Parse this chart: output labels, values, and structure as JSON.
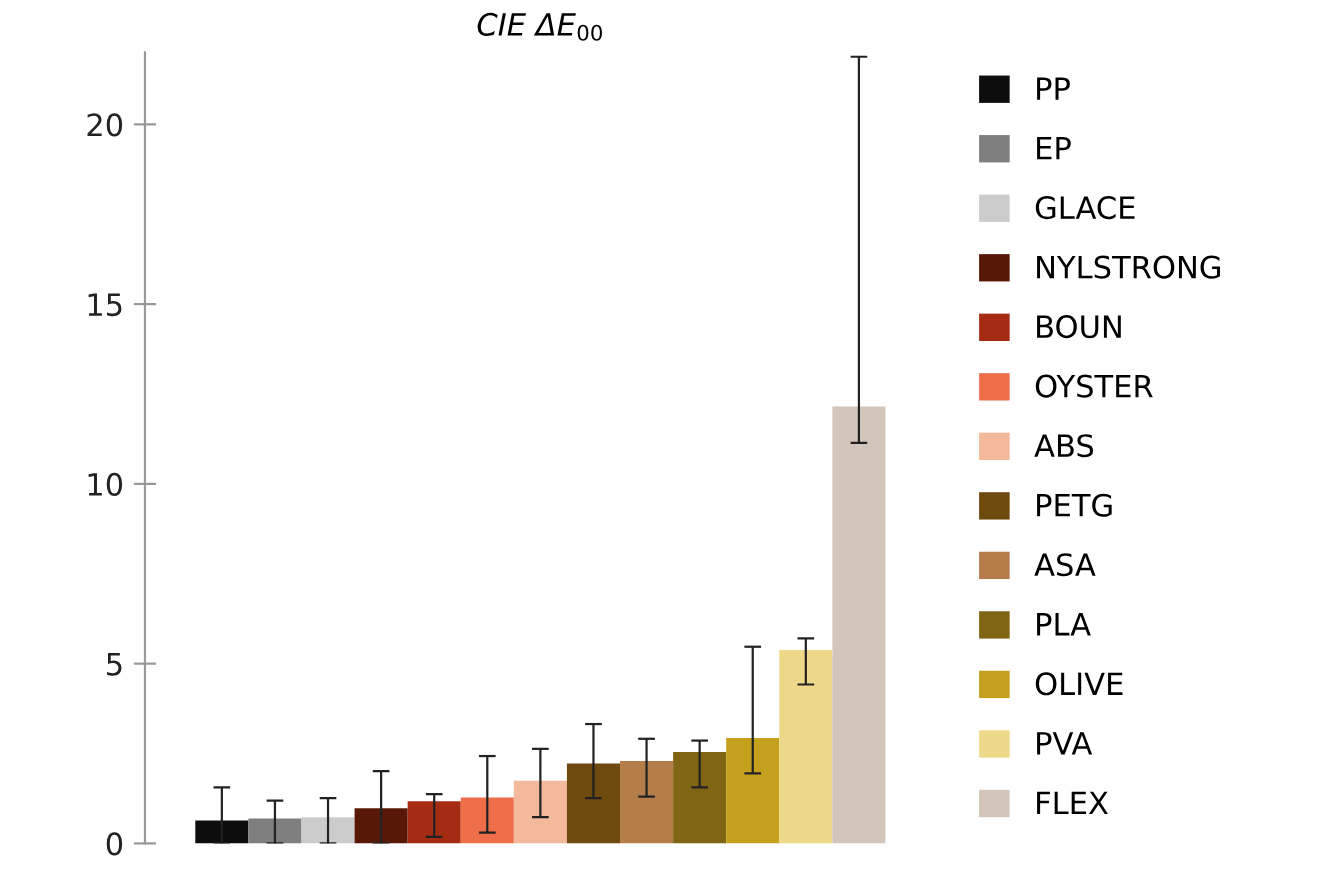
{
  "chart_data": {
    "type": "bar",
    "title": "CIE ΔE$_{00}$",
    "categories": [
      null
    ],
    "series": [
      {
        "name": "PP",
        "color": "#0d0d0d",
        "values": [
          0.64
        ],
        "errors": [
          [
            0,
            1.56
          ]
        ]
      },
      {
        "name": "EP",
        "color": "#7f7f7f",
        "values": [
          0.69
        ],
        "errors": [
          [
            0,
            1.19
          ]
        ]
      },
      {
        "name": "GLACE",
        "color": "#cccccc",
        "values": [
          0.73
        ],
        "errors": [
          [
            0,
            1.26
          ]
        ]
      },
      {
        "name": "NYLSTRONG",
        "color": "#581808",
        "values": [
          0.98
        ],
        "errors": [
          [
            0,
            2.01
          ]
        ]
      },
      {
        "name": "BOUN",
        "color": "#a52c12",
        "values": [
          1.17
        ],
        "errors": [
          [
            0.18,
            1.37
          ]
        ]
      },
      {
        "name": "OYSTER",
        "color": "#ee6e4a",
        "values": [
          1.28
        ],
        "errors": [
          [
            0.3,
            2.43
          ]
        ]
      },
      {
        "name": "ABS",
        "color": "#f4b89a",
        "values": [
          1.74
        ],
        "errors": [
          [
            0.73,
            2.63
          ]
        ]
      },
      {
        "name": "PETG",
        "color": "#6e4a0f",
        "values": [
          2.22
        ],
        "errors": [
          [
            1.26,
            3.32
          ]
        ]
      },
      {
        "name": "ASA",
        "color": "#b57d4a",
        "values": [
          2.29
        ],
        "errors": [
          [
            1.3,
            2.91
          ]
        ]
      },
      {
        "name": "PLA",
        "color": "#7f6514",
        "values": [
          2.54
        ],
        "errors": [
          [
            1.56,
            2.86
          ]
        ]
      },
      {
        "name": "OLIVE",
        "color": "#c4a01c",
        "values": [
          2.93
        ],
        "errors": [
          [
            1.95,
            5.47
          ]
        ]
      },
      {
        "name": "PVA",
        "color": "#eed98a",
        "values": [
          5.38
        ],
        "errors": [
          [
            4.42,
            5.7
          ]
        ]
      },
      {
        "name": "FLEX",
        "color": "#d3c5b9",
        "values": [
          12.15
        ],
        "errors": [
          [
            11.14,
            21.88
          ]
        ]
      }
    ],
    "ylim": [
      0,
      22
    ],
    "yticks": [
      0,
      5,
      10,
      15,
      20
    ],
    "grid": false,
    "legend": "right"
  }
}
